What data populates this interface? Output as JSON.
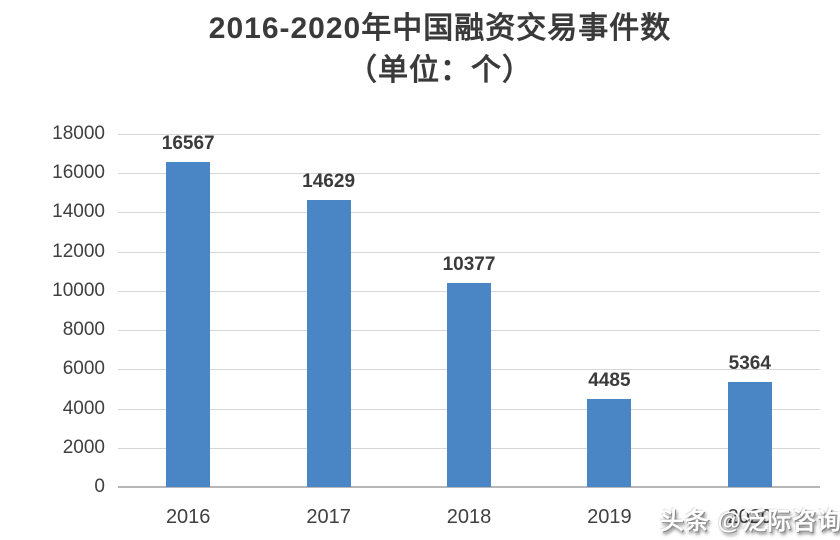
{
  "title": {
    "line1": "2016-2020年中国融资交易事件数",
    "line2": "（单位：个）"
  },
  "watermark": "头条 @泛际咨询",
  "colors": {
    "bar": "#4A86C6",
    "gridline": "#D6D6D6",
    "axis_line": "#B7B7B7",
    "title_text": "#3A3A3A",
    "label_text": "#404040",
    "background": "#FFFFFF",
    "watermark_text": "#FFFFFF"
  },
  "chart_data": {
    "type": "bar",
    "title": "2016-2020年中国融资交易事件数",
    "subtitle": "（单位：个）",
    "categories": [
      "2016",
      "2017",
      "2018",
      "2019",
      "2020"
    ],
    "values": [
      16567,
      14629,
      10377,
      4485,
      5364
    ],
    "data_labels": [
      "16567",
      "14629",
      "10377",
      "4485",
      "5364"
    ],
    "xlabel": "",
    "ylabel": "",
    "ylim": [
      0,
      18000
    ],
    "ytick_step": 2000,
    "yticks": [
      0,
      2000,
      4000,
      6000,
      8000,
      10000,
      12000,
      14000,
      16000,
      18000
    ],
    "grid": "horizontal",
    "legend": "none"
  }
}
